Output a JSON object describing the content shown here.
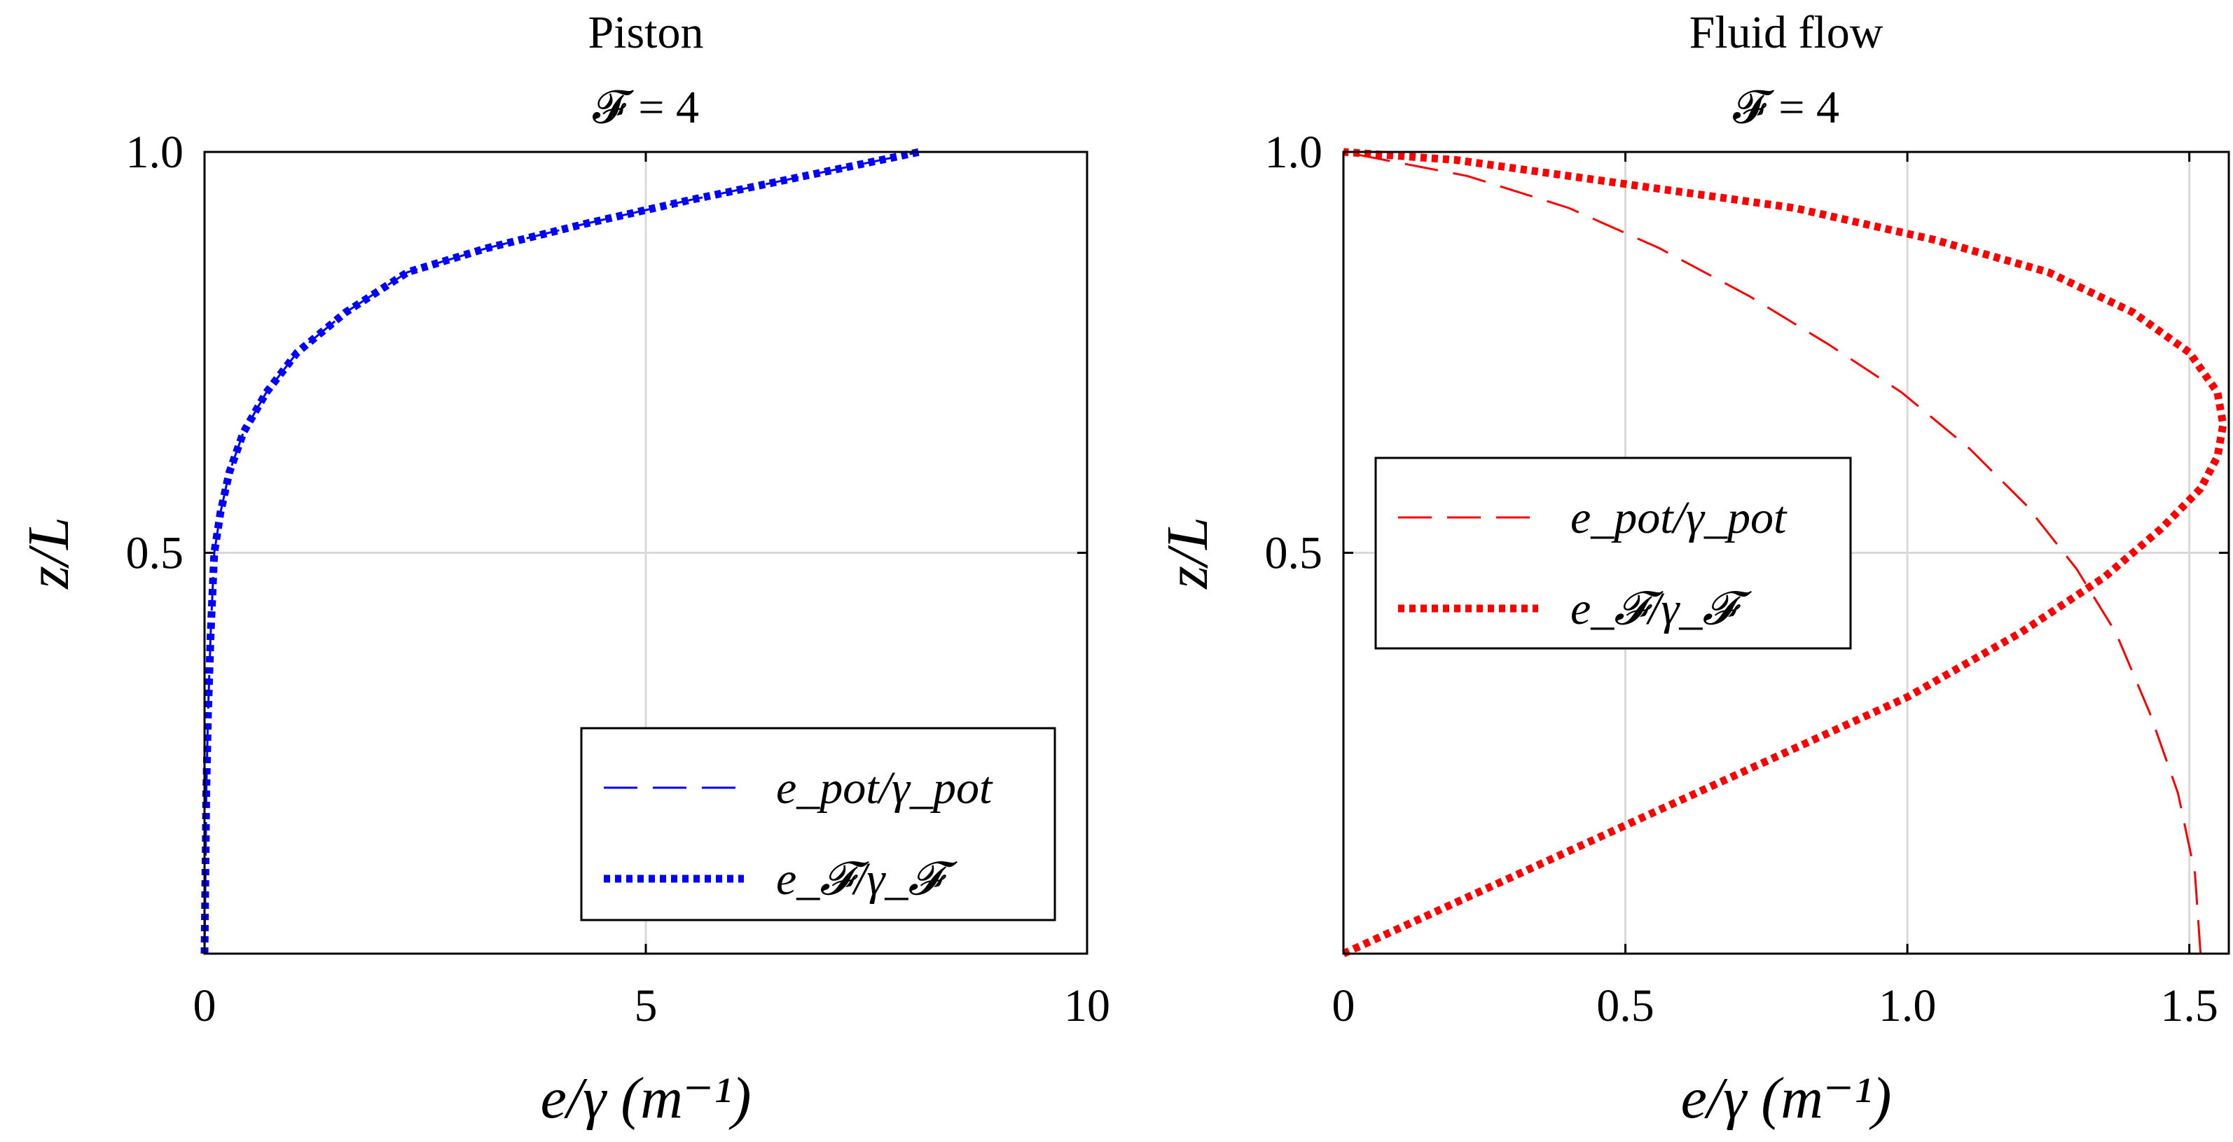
{
  "chart_data": [
    {
      "type": "line",
      "title": "Piston",
      "subtitle": "𝓕 = 4",
      "xlabel": "e/γ (m⁻¹)",
      "ylabel": "z/L",
      "xlim": [
        0,
        10
      ],
      "ylim": [
        0,
        1
      ],
      "xticks": [
        "0",
        "5",
        "10"
      ],
      "yticks": [
        "0.5",
        "1.0"
      ],
      "grid": true,
      "legend_position": "bottom-right",
      "series": [
        {
          "name": "e_pot/γ_pot",
          "style": "dashed",
          "color": "#0000ff",
          "x": [
            0.0,
            0.01,
            0.02,
            0.04,
            0.07,
            0.11,
            0.18,
            0.28,
            0.44,
            0.7,
            1.05,
            1.6,
            2.3,
            3.2,
            4.3,
            5.5,
            6.8,
            8.1
          ],
          "y": [
            0.0,
            0.1,
            0.2,
            0.3,
            0.4,
            0.5,
            0.55,
            0.6,
            0.65,
            0.7,
            0.75,
            0.8,
            0.85,
            0.88,
            0.91,
            0.94,
            0.97,
            1.0
          ]
        },
        {
          "name": "e_𝓕/γ_𝓕",
          "style": "dotted",
          "color": "#0000ff",
          "x": [
            0.0,
            0.01,
            0.02,
            0.04,
            0.07,
            0.11,
            0.18,
            0.28,
            0.44,
            0.7,
            1.05,
            1.6,
            2.3,
            3.2,
            4.3,
            5.5,
            6.8,
            8.1
          ],
          "y": [
            0.0,
            0.1,
            0.2,
            0.3,
            0.4,
            0.5,
            0.55,
            0.6,
            0.65,
            0.7,
            0.75,
            0.8,
            0.85,
            0.88,
            0.91,
            0.94,
            0.97,
            1.0
          ]
        }
      ]
    },
    {
      "type": "line",
      "title": "Fluid flow",
      "subtitle": "𝓕 = 4",
      "xlabel": "e/γ (m⁻¹)",
      "ylabel": "z/L",
      "xlim": [
        0,
        1.57
      ],
      "ylim": [
        0,
        1
      ],
      "xticks": [
        "0",
        "0.5",
        "1.0",
        "1.5"
      ],
      "yticks": [
        "0.5",
        "1.0"
      ],
      "grid": true,
      "legend_position": "center-left",
      "series": [
        {
          "name": "e_pot/γ_pot",
          "style": "dashed",
          "color": "#ff0000",
          "x": [
            1.52,
            1.51,
            1.48,
            1.43,
            1.37,
            1.3,
            1.21,
            1.11,
            0.99,
            0.86,
            0.72,
            0.56,
            0.4,
            0.22,
            0.0
          ],
          "y": [
            0.0,
            0.1,
            0.2,
            0.3,
            0.4,
            0.48,
            0.56,
            0.63,
            0.7,
            0.76,
            0.82,
            0.88,
            0.93,
            0.97,
            1.0
          ]
        },
        {
          "name": "e_𝓕/γ_𝓕",
          "style": "dotted",
          "color": "#ff0000",
          "x": [
            0.0,
            0.25,
            0.5,
            0.75,
            1.0,
            1.2,
            1.35,
            1.45,
            1.52,
            1.55,
            1.56,
            1.55,
            1.5,
            1.4,
            1.25,
            1.05,
            0.8,
            0.5,
            0.2,
            0.0
          ],
          "y": [
            0.0,
            0.08,
            0.16,
            0.24,
            0.32,
            0.4,
            0.47,
            0.53,
            0.58,
            0.62,
            0.66,
            0.7,
            0.75,
            0.8,
            0.85,
            0.89,
            0.93,
            0.96,
            0.99,
            1.0
          ]
        }
      ]
    }
  ]
}
